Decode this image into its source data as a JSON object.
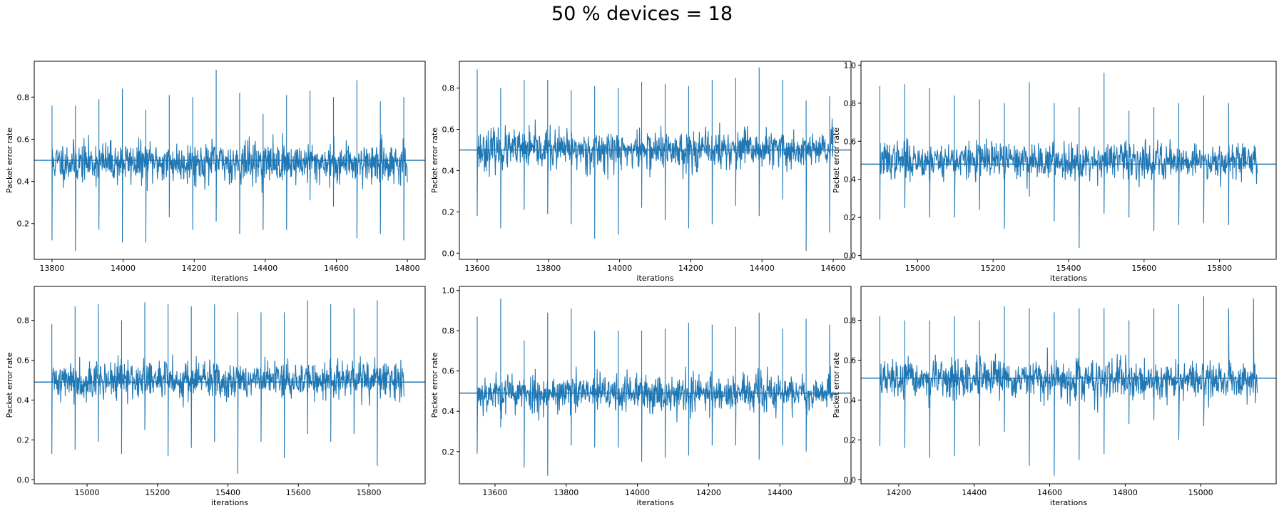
{
  "figure": {
    "title": "50 % devices = 18",
    "line_color": "#1f77b4"
  },
  "chart_data": [
    {
      "type": "line",
      "xlabel": "iterations",
      "ylabel": "Packet error rate",
      "xlim": [
        13750,
        14850
      ],
      "ylim": [
        0.03,
        0.97
      ],
      "xticks": [
        13800,
        14000,
        14200,
        14400,
        14600,
        14800
      ],
      "yticks": [
        0.2,
        0.4,
        0.6,
        0.8
      ],
      "x_start": 13800,
      "x_end": 14800,
      "baseline": 0.5,
      "noise_center": 0.49,
      "spike_period": 66,
      "spikes_high": [
        0.76,
        0.76,
        0.79,
        0.84,
        0.74,
        0.81,
        0.8,
        0.93,
        0.82,
        0.72,
        0.81,
        0.83,
        0.8,
        0.88,
        0.78,
        0.8
      ],
      "spikes_low": [
        0.12,
        0.07,
        0.17,
        0.11,
        0.11,
        0.23,
        0.17,
        0.21,
        0.15,
        0.17,
        0.17,
        0.31,
        0.28,
        0.13,
        0.15,
        0.12,
        0.18
      ],
      "seed": 11
    },
    {
      "type": "line",
      "xlabel": "iterations",
      "ylabel": "Packet error rate",
      "xlim": [
        13550,
        14650
      ],
      "ylim": [
        -0.03,
        0.93
      ],
      "xticks": [
        13600,
        13800,
        14000,
        14200,
        14400,
        14600
      ],
      "yticks": [
        0.0,
        0.2,
        0.4,
        0.6,
        0.8
      ],
      "x_start": 13600,
      "x_end": 14600,
      "baseline": 0.5,
      "noise_center": 0.5,
      "spike_period": 66,
      "spikes_high": [
        0.89,
        0.8,
        0.84,
        0.84,
        0.79,
        0.81,
        0.8,
        0.83,
        0.82,
        0.81,
        0.84,
        0.85,
        0.9,
        0.84,
        0.74,
        0.76
      ],
      "spikes_low": [
        0.18,
        0.12,
        0.21,
        0.19,
        0.14,
        0.07,
        0.09,
        0.22,
        0.16,
        0.12,
        0.14,
        0.23,
        0.18,
        0.26,
        0.01,
        0.1
      ],
      "seed": 23
    },
    {
      "type": "line",
      "xlabel": "iterations",
      "ylabel": "Packet error rate",
      "xlim": [
        14850,
        15950
      ],
      "ylim": [
        -0.02,
        1.02
      ],
      "xticks": [
        15000,
        15200,
        15400,
        15600,
        15800
      ],
      "yticks": [
        0.0,
        0.2,
        0.4,
        0.6,
        0.8,
        1.0
      ],
      "x_start": 14900,
      "x_end": 15900,
      "baseline": 0.48,
      "noise_center": 0.5,
      "spike_period": 66,
      "spikes_high": [
        0.89,
        0.9,
        0.88,
        0.84,
        0.82,
        0.8,
        0.91,
        0.8,
        0.78,
        0.96,
        0.76,
        0.78,
        0.8,
        0.84,
        0.8
      ],
      "spikes_low": [
        0.19,
        0.25,
        0.2,
        0.2,
        0.24,
        0.14,
        0.31,
        0.18,
        0.04,
        0.22,
        0.2,
        0.13,
        0.16,
        0.17,
        0.16
      ],
      "seed": 37
    },
    {
      "type": "line",
      "xlabel": "iterations",
      "ylabel": "Packet error rate",
      "xlim": [
        14850,
        15960
      ],
      "ylim": [
        -0.02,
        0.97
      ],
      "xticks": [
        15000,
        15200,
        15400,
        15600,
        15800
      ],
      "yticks": [
        0.0,
        0.2,
        0.4,
        0.6,
        0.8
      ],
      "x_start": 14900,
      "x_end": 15900,
      "baseline": 0.49,
      "noise_center": 0.5,
      "spike_period": 66,
      "spikes_high": [
        0.78,
        0.87,
        0.88,
        0.8,
        0.89,
        0.88,
        0.87,
        0.88,
        0.84,
        0.84,
        0.84,
        0.9,
        0.88,
        0.86,
        0.9
      ],
      "spikes_low": [
        0.13,
        0.15,
        0.19,
        0.13,
        0.25,
        0.12,
        0.16,
        0.19,
        0.03,
        0.19,
        0.11,
        0.23,
        0.19,
        0.23,
        0.07
      ],
      "seed": 41
    },
    {
      "type": "line",
      "xlabel": "iterations",
      "ylabel": "Packet error rate",
      "xlim": [
        13500,
        14600
      ],
      "ylim": [
        0.04,
        1.02
      ],
      "xticks": [
        13600,
        13800,
        14000,
        14200,
        14400
      ],
      "yticks": [
        0.2,
        0.4,
        0.6,
        0.8,
        1.0
      ],
      "x_start": 13550,
      "x_end": 14550,
      "baseline": 0.49,
      "noise_center": 0.49,
      "spike_period": 66,
      "spikes_high": [
        0.87,
        0.96,
        0.75,
        0.89,
        0.91,
        0.8,
        0.8,
        0.8,
        0.81,
        0.84,
        0.83,
        0.82,
        0.89,
        0.81,
        0.86,
        0.83
      ],
      "spikes_low": [
        0.19,
        0.32,
        0.12,
        0.08,
        0.23,
        0.22,
        0.22,
        0.15,
        0.17,
        0.18,
        0.23,
        0.23,
        0.16,
        0.23,
        0.2
      ],
      "seed": 53
    },
    {
      "type": "line",
      "xlabel": "iterations",
      "ylabel": "Packet error rate",
      "xlim": [
        14100,
        15200
      ],
      "ylim": [
        -0.02,
        0.97
      ],
      "xticks": [
        14200,
        14400,
        14600,
        14800,
        15000
      ],
      "yticks": [
        0.0,
        0.2,
        0.4,
        0.6,
        0.8
      ],
      "x_start": 14150,
      "x_end": 15150,
      "baseline": 0.51,
      "noise_center": 0.5,
      "spike_period": 66,
      "spikes_high": [
        0.82,
        0.8,
        0.8,
        0.82,
        0.8,
        0.87,
        0.86,
        0.84,
        0.86,
        0.86,
        0.8,
        0.86,
        0.88,
        0.92,
        0.86,
        0.91
      ],
      "spikes_low": [
        0.17,
        0.16,
        0.11,
        0.12,
        0.17,
        0.24,
        0.07,
        0.02,
        0.1,
        0.13,
        0.28,
        0.3,
        0.2,
        0.27
      ],
      "seed": 67
    }
  ]
}
